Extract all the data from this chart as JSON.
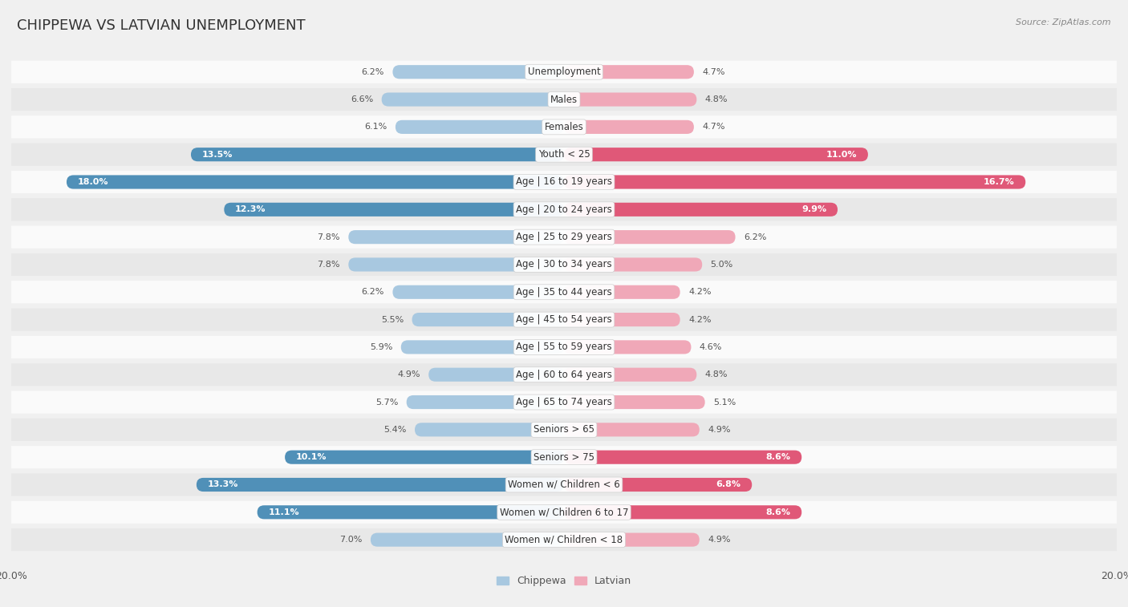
{
  "title": "CHIPPEWA VS LATVIAN UNEMPLOYMENT",
  "source": "Source: ZipAtlas.com",
  "categories": [
    "Unemployment",
    "Males",
    "Females",
    "Youth < 25",
    "Age | 16 to 19 years",
    "Age | 20 to 24 years",
    "Age | 25 to 29 years",
    "Age | 30 to 34 years",
    "Age | 35 to 44 years",
    "Age | 45 to 54 years",
    "Age | 55 to 59 years",
    "Age | 60 to 64 years",
    "Age | 65 to 74 years",
    "Seniors > 65",
    "Seniors > 75",
    "Women w/ Children < 6",
    "Women w/ Children 6 to 17",
    "Women w/ Children < 18"
  ],
  "chippewa": [
    6.2,
    6.6,
    6.1,
    13.5,
    18.0,
    12.3,
    7.8,
    7.8,
    6.2,
    5.5,
    5.9,
    4.9,
    5.7,
    5.4,
    10.1,
    13.3,
    11.1,
    7.0
  ],
  "latvian": [
    4.7,
    4.8,
    4.7,
    11.0,
    16.7,
    9.9,
    6.2,
    5.0,
    4.2,
    4.2,
    4.6,
    4.8,
    5.1,
    4.9,
    8.6,
    6.8,
    8.6,
    4.9
  ],
  "chippewa_color": "#a8c8e0",
  "latvian_color": "#f0a8b8",
  "chippewa_highlight_color": "#5090b8",
  "latvian_highlight_color": "#e05878",
  "highlight_rows": [
    3,
    4,
    5,
    14,
    15,
    16
  ],
  "bg_color": "#f0f0f0",
  "row_bg_even": "#fafafa",
  "row_bg_odd": "#e8e8e8",
  "axis_max": 20.0,
  "legend_chippewa": "Chippewa",
  "legend_latvian": "Latvian",
  "title_fontsize": 13,
  "label_fontsize": 8.5,
  "value_fontsize": 8.0
}
